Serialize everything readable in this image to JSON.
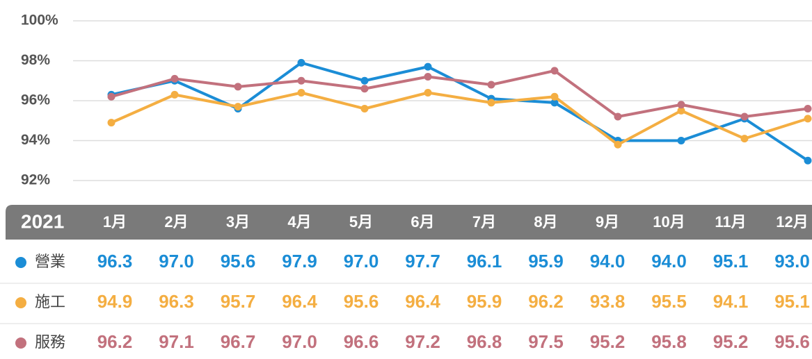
{
  "chart_data": {
    "type": "line",
    "table_year": "2021",
    "categories": [
      "1月",
      "2月",
      "3月",
      "4月",
      "5月",
      "6月",
      "7月",
      "8月",
      "9月",
      "10月",
      "11月",
      "12月"
    ],
    "series": [
      {
        "name": "營業",
        "color": "#1b8dd6",
        "values": [
          96.3,
          97.0,
          95.6,
          97.9,
          97.0,
          97.7,
          96.1,
          95.9,
          94.0,
          94.0,
          95.1,
          93.0
        ],
        "value_labels": [
          "96.3",
          "97.0",
          "95.6",
          "97.9",
          "97.0",
          "97.7",
          "96.1",
          "95.9",
          "94.0",
          "94.0",
          "95.1",
          "93.0"
        ]
      },
      {
        "name": "施工",
        "color": "#f4ae42",
        "values": [
          94.9,
          96.3,
          95.7,
          96.4,
          95.6,
          96.4,
          95.9,
          96.2,
          93.8,
          95.5,
          94.1,
          95.1
        ],
        "value_labels": [
          "94.9",
          "96.3",
          "95.7",
          "96.4",
          "95.6",
          "96.4",
          "95.9",
          "96.2",
          "93.8",
          "95.5",
          "94.1",
          "95.1"
        ]
      },
      {
        "name": "服務",
        "color": "#c2717d",
        "values": [
          96.2,
          97.1,
          96.7,
          97.0,
          96.6,
          97.2,
          96.8,
          97.5,
          95.2,
          95.8,
          95.2,
          95.6
        ],
        "value_labels": [
          "96.2",
          "97.1",
          "96.7",
          "97.0",
          "96.6",
          "97.2",
          "96.8",
          "97.5",
          "95.2",
          "95.8",
          "95.2",
          "95.6"
        ]
      }
    ],
    "ylim": [
      92,
      100
    ],
    "yticks": [
      {
        "value": 92,
        "label": "92%"
      },
      {
        "value": 94,
        "label": "94%"
      },
      {
        "value": 96,
        "label": "96%"
      },
      {
        "value": 98,
        "label": "98%"
      },
      {
        "value": 100,
        "label": "100%"
      }
    ],
    "grid": true
  }
}
